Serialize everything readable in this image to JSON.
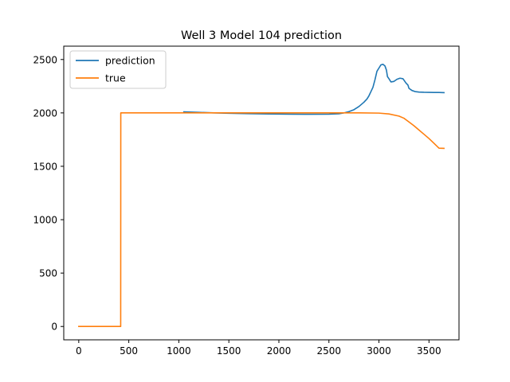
{
  "chart_data": {
    "type": "line",
    "title": "Well 3 Model 104 prediction",
    "xlabel": "",
    "ylabel": "",
    "xlim": [
      -150,
      3800
    ],
    "ylim": [
      -125,
      2625
    ],
    "xticks": [
      0,
      500,
      1000,
      1500,
      2000,
      2500,
      3000,
      3500
    ],
    "yticks": [
      0,
      500,
      1000,
      1500,
      2000,
      2500
    ],
    "grid": false,
    "legend": "top-left",
    "series": [
      {
        "name": "prediction",
        "color": "#1f77b4",
        "x": [
          1050,
          1200,
          1350,
          1500,
          1700,
          1900,
          2100,
          2300,
          2500,
          2600,
          2650,
          2700,
          2750,
          2800,
          2850,
          2880,
          2900,
          2920,
          2940,
          2960,
          2980,
          3000,
          3020,
          3040,
          3060,
          3075,
          3085,
          3100,
          3120,
          3150,
          3180,
          3210,
          3240,
          3270,
          3290,
          3300,
          3330,
          3360,
          3400,
          3450,
          3500,
          3550,
          3600,
          3650
        ],
        "y": [
          2010,
          2005,
          2000,
          1997,
          1993,
          1990,
          1988,
          1987,
          1988,
          1992,
          2000,
          2012,
          2030,
          2060,
          2100,
          2130,
          2160,
          2200,
          2240,
          2310,
          2390,
          2420,
          2450,
          2455,
          2440,
          2400,
          2340,
          2320,
          2290,
          2295,
          2315,
          2325,
          2320,
          2280,
          2260,
          2230,
          2210,
          2200,
          2195,
          2193,
          2192,
          2191,
          2191,
          2190
        ]
      },
      {
        "name": "true",
        "color": "#ff7f0e",
        "x": [
          0,
          200,
          419,
          420,
          600,
          1000,
          1500,
          2000,
          2500,
          2800,
          3000,
          3100,
          3200,
          3250,
          3300,
          3350,
          3400,
          3450,
          3500,
          3550,
          3600,
          3650
        ],
        "y": [
          0,
          0,
          0,
          2000,
          2000,
          2000,
          2000,
          2000,
          2000,
          2000,
          1998,
          1990,
          1970,
          1950,
          1915,
          1880,
          1840,
          1800,
          1760,
          1715,
          1670,
          1668
        ]
      }
    ]
  }
}
